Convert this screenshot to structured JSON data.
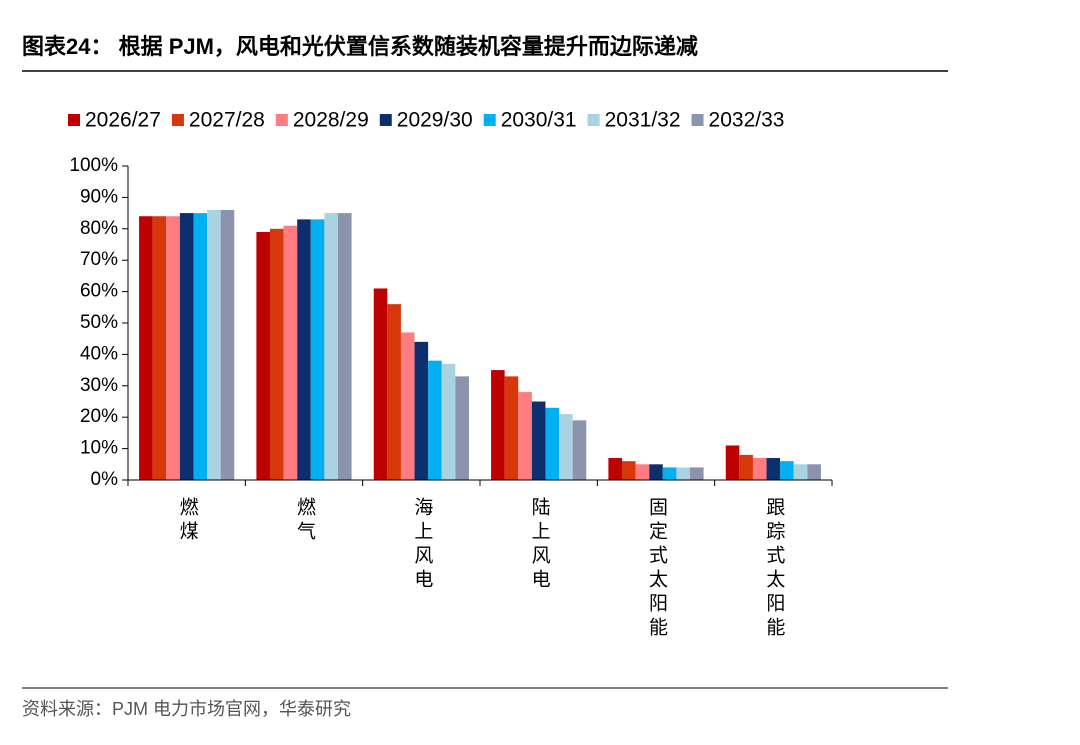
{
  "chart_data": {
    "type": "bar",
    "title": "图表24： 根据 PJM，风电和光伏置信系数随装机容量提升而边际递减",
    "source": "资料来源：PJM 电力市场官网，华泰研究",
    "categories": [
      "燃煤",
      "燃气",
      "海上风电",
      "陆上风电",
      "固定式太阳能",
      "跟踪式太阳能"
    ],
    "series": [
      {
        "name": "2026/27",
        "color": "#c00000",
        "values": [
          84,
          79,
          61,
          35,
          7,
          11
        ]
      },
      {
        "name": "2027/28",
        "color": "#d6380c",
        "values": [
          84,
          80,
          56,
          33,
          6,
          8
        ]
      },
      {
        "name": "2028/29",
        "color": "#ff7c80",
        "values": [
          84,
          81,
          47,
          28,
          5,
          7
        ]
      },
      {
        "name": "2029/30",
        "color": "#0d2f6e",
        "values": [
          85,
          83,
          44,
          25,
          5,
          7
        ]
      },
      {
        "name": "2030/31",
        "color": "#00b0f0",
        "values": [
          85,
          83,
          38,
          23,
          4,
          6
        ]
      },
      {
        "name": "2031/32",
        "color": "#a9d3e3",
        "values": [
          86,
          85,
          37,
          21,
          4,
          5
        ]
      },
      {
        "name": "2032/33",
        "color": "#8b93ad",
        "values": [
          86,
          85,
          33,
          19,
          4,
          5
        ]
      }
    ],
    "ylim": [
      0,
      100
    ],
    "yticks": [
      {
        "value": 0,
        "label": "0%"
      },
      {
        "value": 10,
        "label": "10%"
      },
      {
        "value": 20,
        "label": "20%"
      },
      {
        "value": 30,
        "label": "30%"
      },
      {
        "value": 40,
        "label": "40%"
      },
      {
        "value": 50,
        "label": "50%"
      },
      {
        "value": 60,
        "label": "60%"
      },
      {
        "value": 70,
        "label": "70%"
      },
      {
        "value": 80,
        "label": "80%"
      },
      {
        "value": 90,
        "label": "90%"
      },
      {
        "value": 100,
        "label": "100%"
      }
    ],
    "legend": "top"
  }
}
